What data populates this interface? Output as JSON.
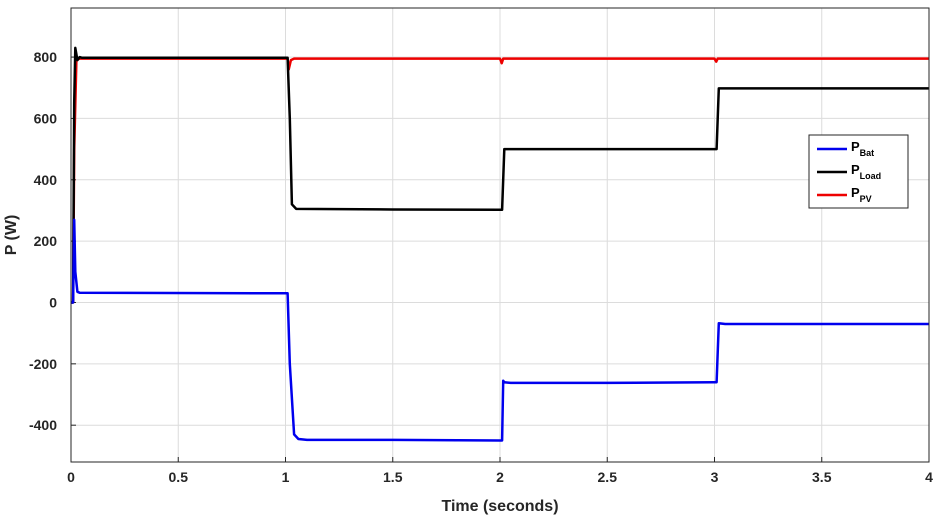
{
  "chart_data": {
    "type": "line",
    "title": "",
    "xlabel": "Time (seconds)",
    "ylabel": "P (W)",
    "xlim": [
      0,
      4
    ],
    "ylim": [
      -520,
      960
    ],
    "xticks": [
      "0",
      "0.5",
      "1",
      "1.5",
      "2",
      "2.5",
      "3",
      "3.5",
      "4"
    ],
    "yticks": [
      "-400",
      "-200",
      "0",
      "200",
      "400",
      "600",
      "800"
    ],
    "grid": true,
    "legend_position": "right-upper",
    "series": [
      {
        "name": "P_Bat",
        "label_main": "P",
        "label_sub": "Bat",
        "color": "#0000ee",
        "x": [
          0,
          0.01,
          0.015,
          0.02,
          0.03,
          0.04,
          1.0,
          1.01,
          1.02,
          1.04,
          1.06,
          1.1,
          1.5,
          2.0,
          2.01,
          2.015,
          2.02,
          2.05,
          2.5,
          3.0,
          3.01,
          3.02,
          3.05,
          4.0
        ],
        "y": [
          0,
          0,
          270,
          100,
          35,
          32,
          30,
          30,
          -200,
          -430,
          -445,
          -448,
          -448,
          -450,
          -450,
          -255,
          -260,
          -262,
          -262,
          -260,
          -260,
          -68,
          -70,
          -70
        ]
      },
      {
        "name": "P_Load",
        "label_main": "P",
        "label_sub": "Load",
        "color": "#000000",
        "x": [
          0,
          0.01,
          0.015,
          0.02,
          0.03,
          0.04,
          0.05,
          1.0,
          1.01,
          1.02,
          1.03,
          1.05,
          1.5,
          2.0,
          2.01,
          2.02,
          2.5,
          3.0,
          3.01,
          3.02,
          4.0
        ],
        "y": [
          0,
          0,
          650,
          830,
          790,
          800,
          798,
          798,
          798,
          600,
          320,
          305,
          303,
          302,
          302,
          500,
          500,
          500,
          500,
          698,
          698
        ]
      },
      {
        "name": "P_PV",
        "label_main": "P",
        "label_sub": "PV",
        "color": "#ee0000",
        "x": [
          0,
          0.01,
          0.015,
          0.025,
          0.04,
          1.0,
          1.01,
          1.015,
          1.025,
          1.04,
          2.0,
          2.008,
          2.015,
          2.025,
          3.0,
          3.008,
          3.015,
          3.025,
          4.0
        ],
        "y": [
          0,
          0,
          500,
          790,
          795,
          795,
          795,
          760,
          790,
          795,
          795,
          780,
          795,
          795,
          795,
          785,
          795,
          795,
          795
        ]
      }
    ]
  }
}
